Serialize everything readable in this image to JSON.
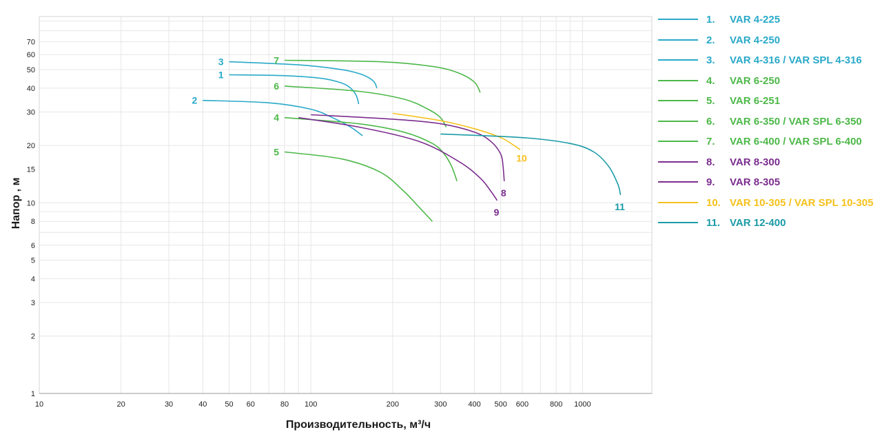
{
  "chart_data": {
    "type": "line",
    "title": "",
    "xlabel": "Производительность, м³/ч",
    "ylabel": "Напор , м",
    "xscale": "log",
    "yscale": "log",
    "xlim": [
      10,
      1800
    ],
    "ylim": [
      1,
      95
    ],
    "grid": true,
    "legend_position": "right",
    "x_ticks": [
      "10",
      "20",
      "30",
      "40",
      "50",
      "60",
      "80",
      "100",
      "200",
      "300",
      "400",
      "500",
      "600",
      "800",
      "1000"
    ],
    "y_ticks": [
      "1",
      "2",
      "3",
      "4",
      "5",
      "6",
      "8",
      "10",
      "15",
      "20",
      "30",
      "40",
      "50",
      "60",
      "70"
    ],
    "series": [
      {
        "name": "VAR 4-225",
        "number": "1.",
        "label": "1",
        "color": "#29a9c9",
        "x": [
          50,
          80,
          110,
          130,
          140,
          147,
          150
        ],
        "y": [
          47,
          46.5,
          45,
          42.5,
          40,
          36.5,
          33
        ]
      },
      {
        "name": "VAR 4-250",
        "number": "2.",
        "label": "2",
        "color": "#29a9c9",
        "x": [
          40,
          70,
          100,
          120,
          140,
          155
        ],
        "y": [
          34.5,
          33.5,
          31,
          28,
          25,
          22.5
        ]
      },
      {
        "name": "VAR 4-316 / VAR SPL 4-316",
        "number": "3.",
        "label": "3",
        "color": "#29a9c9",
        "x": [
          50,
          90,
          130,
          155,
          170,
          175
        ],
        "y": [
          55,
          53,
          50,
          47,
          43.5,
          40
        ]
      },
      {
        "name": "VAR 6-250",
        "number": "4.",
        "label": "4",
        "color": "#4cb848",
        "x": [
          80,
          150,
          220,
          280,
          310,
          330,
          345
        ],
        "y": [
          28,
          26,
          23.5,
          20.5,
          18,
          15.5,
          13
        ]
      },
      {
        "name": "VAR 6-251",
        "number": "5.",
        "label": "5",
        "color": "#4cb848",
        "x": [
          80,
          130,
          180,
          220,
          250,
          280
        ],
        "y": [
          18.5,
          17,
          14.5,
          11.5,
          9.5,
          8
        ]
      },
      {
        "name": "VAR 6-350 / VAR SPL 6-350",
        "number": "6.",
        "label": "6",
        "color": "#4cb848",
        "x": [
          80,
          150,
          220,
          270,
          300,
          315
        ],
        "y": [
          41,
          38.5,
          35,
          31,
          28,
          25
        ]
      },
      {
        "name": "VAR 6-400 / VAR SPL 6-400",
        "number": "7.",
        "label": "7",
        "color": "#4cb848",
        "x": [
          80,
          180,
          280,
          350,
          400,
          420
        ],
        "y": [
          56,
          55,
          52,
          48,
          43,
          38
        ]
      },
      {
        "name": "VAR 8-300",
        "number": "8.",
        "label": "8",
        "color": "#7b2d8e",
        "x": [
          100,
          200,
          300,
          400,
          460,
          500,
          510,
          515
        ],
        "y": [
          29,
          27.5,
          26,
          23.5,
          21,
          18,
          15.5,
          13
        ]
      },
      {
        "name": "VAR 8-305",
        "number": "9.",
        "label": "9",
        "color": "#7b2d8e",
        "x": [
          90,
          150,
          250,
          350,
          420,
          460,
          485
        ],
        "y": [
          28,
          25,
          21,
          16.5,
          13.5,
          11.5,
          10.3
        ]
      },
      {
        "name": "VAR 10-305 / VAR SPL 10-305",
        "number": "10.",
        "label": "10",
        "color": "#f5c11b",
        "x": [
          200,
          300,
          400,
          500,
          560,
          590
        ],
        "y": [
          29.5,
          27,
          24.5,
          22,
          20,
          19
        ]
      },
      {
        "name": "VAR 12-400",
        "number": "11.",
        "label": "11",
        "color": "#1a9aa6",
        "x": [
          300,
          600,
          900,
          1100,
          1250,
          1350,
          1380
        ],
        "y": [
          23,
          22,
          20.5,
          18.5,
          15.5,
          12.5,
          11
        ]
      }
    ]
  }
}
